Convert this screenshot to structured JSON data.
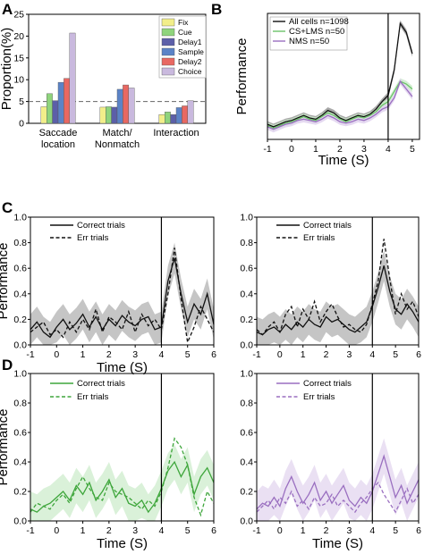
{
  "panel_letters": {
    "a": "A",
    "b": "B",
    "c": "C",
    "d": "D"
  },
  "chart_data": [
    {
      "id": "A",
      "type": "bar",
      "ylabel": "Proportion(%)",
      "ylim": [
        0,
        25
      ],
      "yticks": [
        "0",
        "5",
        "10",
        "15",
        "20",
        "25"
      ],
      "reference_line": 5,
      "categories": [
        [
          "Saccade",
          "location"
        ],
        [
          "Match/",
          "Nonmatch"
        ],
        [
          "Interaction"
        ]
      ],
      "series": [
        {
          "name": "Fix",
          "color": "#f2ee8a",
          "values": [
            3.8,
            3.7,
            2.0
          ]
        },
        {
          "name": "Cue",
          "color": "#8fd47c",
          "values": [
            6.8,
            3.8,
            2.6
          ]
        },
        {
          "name": "Delay1",
          "color": "#5c5fa8",
          "values": [
            5.2,
            3.7,
            2.0
          ]
        },
        {
          "name": "Sample",
          "color": "#5b83c7",
          "values": [
            9.4,
            7.8,
            3.6
          ]
        },
        {
          "name": "Delay2",
          "color": "#e86862",
          "values": [
            10.3,
            8.8,
            4.0
          ]
        },
        {
          "name": "Choice",
          "color": "#c9b9de",
          "values": [
            20.7,
            8.1,
            5.2
          ]
        }
      ],
      "legend_position": "top-right"
    },
    {
      "id": "B",
      "type": "line",
      "xlabel": "Time (S)",
      "ylabel": "Performance",
      "xlim": [
        -1,
        5.3
      ],
      "ylim": [
        0,
        1.0
      ],
      "xticks": [
        "-1",
        "0",
        "1",
        "2",
        "3",
        "4",
        "5"
      ],
      "vline": 4,
      "x": [
        -1,
        -0.75,
        -0.5,
        -0.25,
        0,
        0.25,
        0.5,
        0.75,
        1,
        1.25,
        1.5,
        1.75,
        2,
        2.25,
        2.5,
        2.75,
        3,
        3.25,
        3.5,
        3.75,
        4,
        4.25,
        4.5,
        4.75,
        5
      ],
      "series": [
        {
          "name": "All cells n=1098",
          "color": "#111111",
          "band": "#999999",
          "values": [
            0.12,
            0.1,
            0.12,
            0.14,
            0.15,
            0.17,
            0.19,
            0.17,
            0.16,
            0.19,
            0.23,
            0.21,
            0.17,
            0.15,
            0.17,
            0.19,
            0.18,
            0.2,
            0.24,
            0.3,
            0.35,
            0.55,
            0.92,
            0.85,
            0.68
          ]
        },
        {
          "name": "CS+LMS n=50",
          "color": "#6cc36a",
          "band": "#cdeccb",
          "values": [
            0.11,
            0.09,
            0.11,
            0.13,
            0.14,
            0.16,
            0.18,
            0.16,
            0.15,
            0.18,
            0.21,
            0.19,
            0.16,
            0.14,
            0.16,
            0.18,
            0.17,
            0.19,
            0.22,
            0.27,
            0.3,
            0.38,
            0.46,
            0.44,
            0.4
          ]
        },
        {
          "name": "NMS n=50",
          "color": "#9a6fc0",
          "band": "#e0d2ee",
          "values": [
            0.1,
            0.08,
            0.1,
            0.12,
            0.13,
            0.15,
            0.16,
            0.15,
            0.14,
            0.16,
            0.19,
            0.17,
            0.14,
            0.13,
            0.14,
            0.16,
            0.15,
            0.17,
            0.2,
            0.24,
            0.26,
            0.33,
            0.46,
            0.4,
            0.34
          ]
        }
      ],
      "legend_position": "top-left"
    },
    {
      "id": "C-left",
      "type": "line",
      "xlabel": "Time (S)",
      "ylabel": "Performance",
      "xlim": [
        -1,
        6
      ],
      "ylim": [
        0,
        1.0
      ],
      "xticks": [
        "-1",
        "0",
        "1",
        "2",
        "3",
        "4",
        "5",
        "6"
      ],
      "yticks": [
        "0.0",
        "0.2",
        "0.4",
        "0.6",
        "0.8",
        "1.0"
      ],
      "vline": 4,
      "x": [
        -1,
        -0.75,
        -0.5,
        -0.25,
        0,
        0.25,
        0.5,
        0.75,
        1,
        1.25,
        1.5,
        1.75,
        2,
        2.25,
        2.5,
        2.75,
        3,
        3.25,
        3.5,
        3.75,
        4,
        4.25,
        4.5,
        4.75,
        5,
        5.25,
        5.5,
        5.75,
        6
      ],
      "series": [
        {
          "name": "Correct trials",
          "style": "solid",
          "color": "#111111",
          "band": "#bbbbbb",
          "values": [
            0.12,
            0.18,
            0.1,
            0.06,
            0.14,
            0.2,
            0.12,
            0.17,
            0.24,
            0.14,
            0.22,
            0.12,
            0.2,
            0.15,
            0.23,
            0.18,
            0.15,
            0.2,
            0.22,
            0.12,
            0.14,
            0.5,
            0.68,
            0.4,
            0.18,
            0.32,
            0.24,
            0.4,
            0.16
          ]
        },
        {
          "name": "Err trials",
          "style": "dashed",
          "color": "#111111",
          "values": [
            0.1,
            0.14,
            0.18,
            0.08,
            0.12,
            0.06,
            0.18,
            0.1,
            0.2,
            0.12,
            0.28,
            0.1,
            0.22,
            0.18,
            0.12,
            0.26,
            0.1,
            0.24,
            0.15,
            0.2,
            0.12,
            0.4,
            0.76,
            0.36,
            0.02,
            0.14,
            0.3,
            0.2,
            0.1
          ]
        }
      ],
      "legend_position": "top-left"
    },
    {
      "id": "C-right",
      "type": "line",
      "xlim": [
        -1,
        6
      ],
      "ylim": [
        0,
        1.0
      ],
      "xticks": [
        "-1",
        "0",
        "1",
        "2",
        "3",
        "4",
        "5",
        "6"
      ],
      "yticks": [
        "0.0",
        "0.2",
        "0.4",
        "0.6",
        "0.8",
        "1.0"
      ],
      "vline": 4,
      "x": [
        -1,
        -0.75,
        -0.5,
        -0.25,
        0,
        0.25,
        0.5,
        0.75,
        1,
        1.25,
        1.5,
        1.75,
        2,
        2.25,
        2.5,
        2.75,
        3,
        3.25,
        3.5,
        3.75,
        4,
        4.25,
        4.5,
        4.75,
        5,
        5.25,
        5.5,
        5.75,
        6
      ],
      "series": [
        {
          "name": "Correct trials",
          "style": "solid",
          "color": "#111111",
          "band": "#bbbbbb",
          "values": [
            0.1,
            0.08,
            0.12,
            0.14,
            0.1,
            0.16,
            0.12,
            0.18,
            0.14,
            0.2,
            0.16,
            0.14,
            0.22,
            0.18,
            0.2,
            0.16,
            0.12,
            0.1,
            0.14,
            0.18,
            0.3,
            0.45,
            0.62,
            0.42,
            0.28,
            0.24,
            0.32,
            0.26,
            0.18
          ]
        },
        {
          "name": "Err trials",
          "style": "dashed",
          "color": "#111111",
          "values": [
            0.12,
            0.08,
            0.14,
            0.18,
            0.1,
            0.24,
            0.3,
            0.14,
            0.28,
            0.2,
            0.34,
            0.18,
            0.26,
            0.32,
            0.22,
            0.14,
            0.16,
            0.12,
            0.1,
            0.16,
            0.32,
            0.5,
            0.83,
            0.52,
            0.24,
            0.4,
            0.28,
            0.34,
            0.22
          ]
        }
      ],
      "legend_position": "top-left"
    },
    {
      "id": "D-left",
      "type": "line",
      "xlabel": "Time (S)",
      "ylabel": "Performance",
      "xlim": [
        -1,
        6
      ],
      "ylim": [
        0,
        1.0
      ],
      "xticks": [
        "-1",
        "0",
        "1",
        "2",
        "3",
        "4",
        "5",
        "6"
      ],
      "yticks": [
        "0.0",
        "0.2",
        "0.4",
        "0.6",
        "0.8",
        "1.0"
      ],
      "vline": 4,
      "x": [
        -1,
        -0.75,
        -0.5,
        -0.25,
        0,
        0.25,
        0.5,
        0.75,
        1,
        1.25,
        1.5,
        1.75,
        2,
        2.25,
        2.5,
        2.75,
        3,
        3.25,
        3.5,
        3.75,
        4,
        4.25,
        4.5,
        4.75,
        5,
        5.25,
        5.5,
        5.75,
        6
      ],
      "series": [
        {
          "name": "Correct trials",
          "style": "solid",
          "color": "#3ea63b",
          "band": "#d4eed2",
          "values": [
            0.08,
            0.06,
            0.1,
            0.12,
            0.16,
            0.2,
            0.14,
            0.24,
            0.18,
            0.26,
            0.14,
            0.2,
            0.28,
            0.16,
            0.22,
            0.12,
            0.1,
            0.14,
            0.06,
            0.12,
            0.22,
            0.34,
            0.4,
            0.3,
            0.38,
            0.18,
            0.3,
            0.36,
            0.26
          ]
        },
        {
          "name": "Err trials",
          "style": "dashed",
          "color": "#3ea63b",
          "values": [
            0.06,
            0.12,
            0.1,
            0.08,
            0.14,
            0.18,
            0.12,
            0.22,
            0.3,
            0.22,
            0.16,
            0.14,
            0.26,
            0.2,
            0.18,
            0.16,
            0.12,
            0.08,
            0.14,
            0.1,
            0.2,
            0.36,
            0.56,
            0.5,
            0.38,
            0.16,
            0.04,
            0.2,
            0.12
          ]
        }
      ],
      "legend_position": "top-left"
    },
    {
      "id": "D-right",
      "type": "line",
      "xlabel": "Time (S)",
      "xlim": [
        -1,
        6
      ],
      "ylim": [
        0,
        1.0
      ],
      "xticks": [
        "-1",
        "0",
        "1",
        "2",
        "3",
        "4",
        "5",
        "6"
      ],
      "yticks": [
        "0.0",
        "0.2",
        "0.4",
        "0.6",
        "0.8",
        "1.0"
      ],
      "vline": 4,
      "x": [
        -1,
        -0.75,
        -0.5,
        -0.25,
        0,
        0.25,
        0.5,
        0.75,
        1,
        1.25,
        1.5,
        1.75,
        2,
        2.25,
        2.5,
        2.75,
        3,
        3.25,
        3.5,
        3.75,
        4,
        4.25,
        4.5,
        4.75,
        5,
        5.25,
        5.5,
        5.75,
        6
      ],
      "series": [
        {
          "name": "Correct trials",
          "style": "solid",
          "color": "#9a6fc0",
          "band": "#e6dbf1",
          "values": [
            0.08,
            0.12,
            0.1,
            0.16,
            0.1,
            0.22,
            0.3,
            0.2,
            0.12,
            0.18,
            0.26,
            0.14,
            0.2,
            0.12,
            0.18,
            0.24,
            0.14,
            0.1,
            0.16,
            0.12,
            0.2,
            0.32,
            0.44,
            0.3,
            0.16,
            0.24,
            0.12,
            0.2,
            0.28
          ]
        },
        {
          "name": "Err trials",
          "style": "dashed",
          "color": "#9a6fc0",
          "values": [
            0.06,
            0.1,
            0.14,
            0.08,
            0.16,
            0.12,
            0.2,
            0.1,
            0.14,
            0.08,
            0.16,
            0.1,
            0.12,
            0.18,
            0.1,
            0.14,
            0.1,
            0.06,
            0.12,
            0.16,
            0.22,
            0.26,
            0.18,
            0.12,
            0.06,
            0.14,
            0.22,
            0.12,
            0.18
          ]
        }
      ],
      "legend_position": "top-left"
    }
  ]
}
